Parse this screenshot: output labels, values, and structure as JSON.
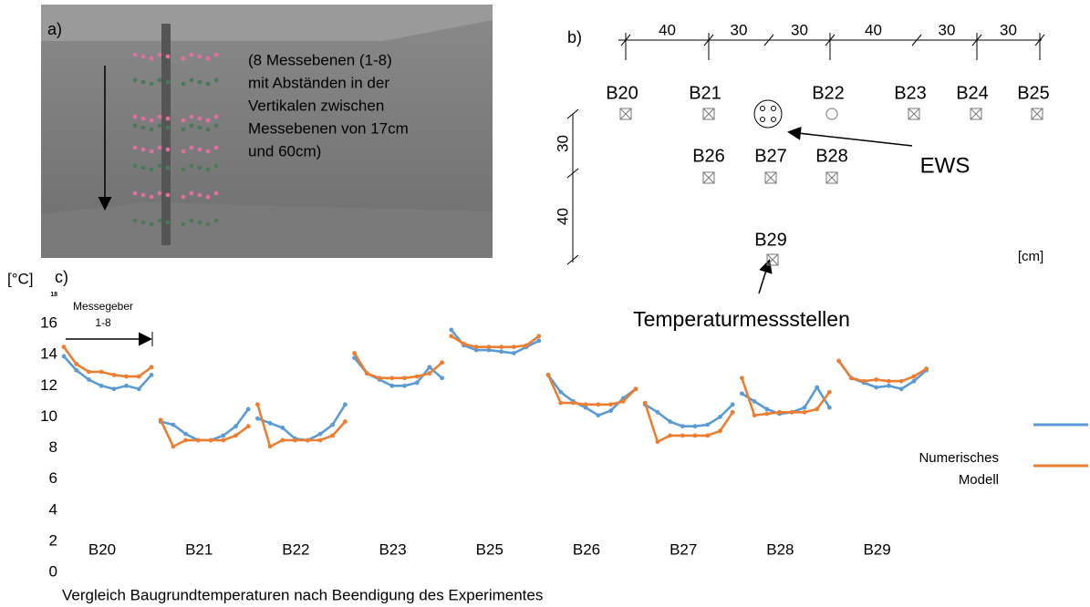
{
  "panel_a": {
    "label": "a)",
    "caption_lines": [
      "(8 Messebenen (1-8)",
      "mit Abständen in der",
      "Vertikalen zwischen",
      "Messebenen von 17cm",
      "und 60cm)"
    ]
  },
  "panel_b": {
    "label": "b)",
    "dimensions": [
      40,
      30,
      30,
      40,
      30,
      30
    ],
    "sensors_row1": [
      "B20",
      "B21",
      "B22",
      "B23",
      "B24",
      "B25"
    ],
    "sensors_row2": [
      "B26",
      "B27",
      "B28"
    ],
    "sensor_row3": "B29",
    "vertical_dimensions": [
      30,
      40
    ],
    "probe_label": "EWS",
    "unit": "[cm]",
    "sensor_caption": "Temperaturmessstellen"
  },
  "chart_data": {
    "type": "line",
    "label": "c)",
    "y_unit": "[°C]",
    "annotation": "Messegeber",
    "annotation_sub": "1-8",
    "x_label": "Vergleich Baugrundtemperaturen nach Beendigung des Experimentes",
    "categories": [
      "B20",
      "B21",
      "B22",
      "B23",
      "B25",
      "B26",
      "B27",
      "B28",
      "B29"
    ],
    "ylim": [
      0,
      18
    ],
    "yticks": [
      0,
      2,
      4,
      6,
      8,
      10,
      12,
      14,
      16,
      18
    ],
    "grid": false,
    "legend": "right",
    "series": [
      {
        "color": "#5b9bd5",
        "values": [
          [
            13.9,
            13.0,
            12.4,
            12.0,
            11.8,
            12.0,
            11.8,
            12.7
          ],
          [
            9.7,
            9.5,
            8.9,
            8.5,
            8.5,
            8.8,
            9.4,
            10.5
          ],
          [
            9.9,
            9.6,
            9.3,
            8.6,
            8.5,
            8.9,
            9.5,
            10.8
          ],
          [
            13.8,
            12.8,
            12.4,
            12.0,
            12.0,
            12.2,
            13.2,
            12.5
          ],
          [
            15.6,
            14.6,
            14.3,
            14.3,
            14.2,
            14.1,
            14.5,
            14.9
          ],
          [
            12.7,
            11.6,
            11.0,
            10.6,
            10.1,
            10.4,
            11.2,
            11.8
          ],
          [
            10.8,
            10.3,
            9.7,
            9.4,
            9.4,
            9.5,
            10.0,
            10.8
          ],
          [
            11.5,
            11.0,
            10.5,
            10.2,
            10.3,
            10.6,
            11.9,
            10.6
          ],
          [
            13.6,
            12.5,
            12.2,
            11.9,
            12.0,
            11.8,
            12.3,
            13.0
          ]
        ]
      },
      {
        "name": "Numerisches Modell",
        "color": "#ed7d31",
        "values": [
          [
            14.5,
            13.4,
            12.9,
            12.9,
            12.7,
            12.6,
            12.6,
            13.2
          ],
          [
            9.8,
            8.1,
            8.5,
            8.5,
            8.5,
            8.5,
            8.8,
            9.4
          ],
          [
            10.8,
            8.1,
            8.5,
            8.5,
            8.5,
            8.5,
            8.8,
            9.7
          ],
          [
            14.1,
            12.8,
            12.5,
            12.5,
            12.5,
            12.6,
            12.8,
            13.5
          ],
          [
            15.2,
            14.7,
            14.5,
            14.5,
            14.5,
            14.5,
            14.6,
            15.2
          ],
          [
            12.7,
            10.9,
            10.9,
            10.8,
            10.8,
            10.8,
            11.0,
            11.8
          ],
          [
            10.9,
            8.4,
            8.8,
            8.8,
            8.8,
            8.8,
            9.1,
            10.3
          ],
          [
            12.5,
            10.1,
            10.2,
            10.3,
            10.3,
            10.3,
            10.5,
            11.6
          ],
          [
            13.6,
            12.5,
            12.3,
            12.4,
            12.3,
            12.3,
            12.6,
            13.1
          ]
        ]
      }
    ]
  }
}
